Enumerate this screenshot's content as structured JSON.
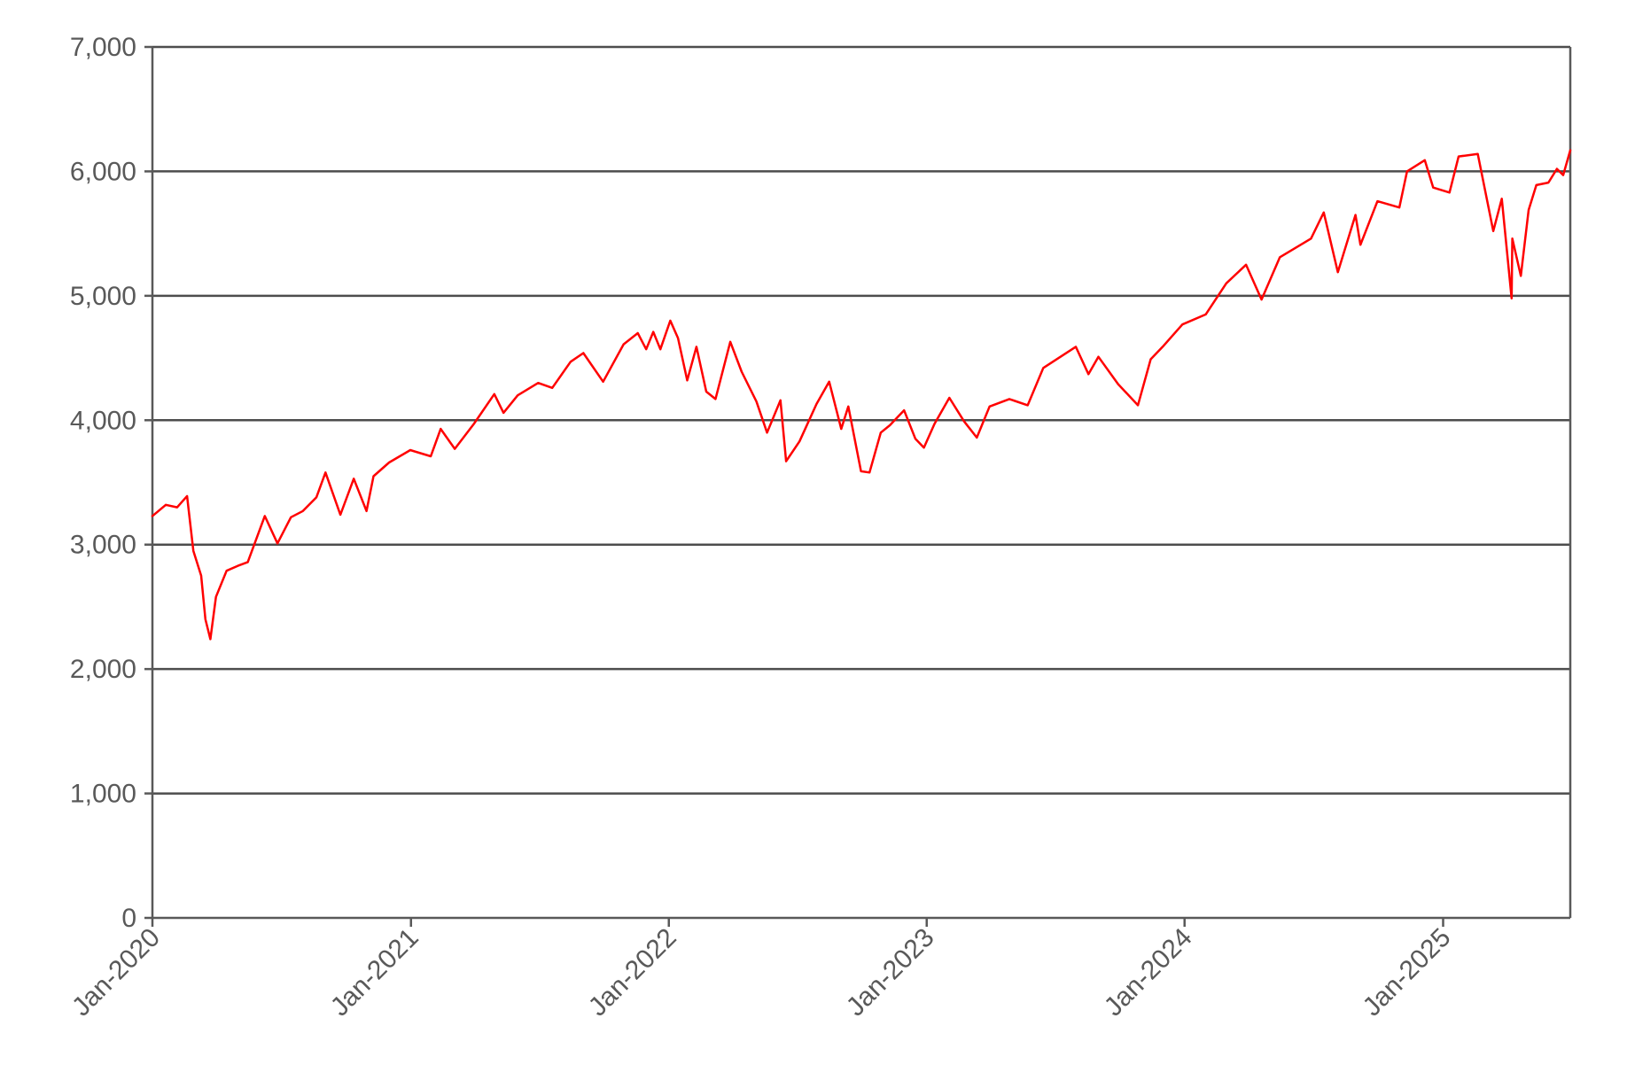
{
  "chart_data": {
    "type": "line",
    "title": "",
    "xlabel": "",
    "ylabel": "",
    "ylim": [
      0,
      7000
    ],
    "xlim": [
      "2020-01-01",
      "2025-06-30"
    ],
    "y_ticks": [
      0,
      1000,
      2000,
      3000,
      4000,
      5000,
      6000,
      7000
    ],
    "y_tick_labels": [
      "0",
      "1,000",
      "2,000",
      "3,000",
      "4,000",
      "5,000",
      "6,000",
      "7,000"
    ],
    "x_ticks": [
      "2020-01-01",
      "2021-01-01",
      "2022-01-01",
      "2023-01-01",
      "2024-01-01",
      "2025-01-01"
    ],
    "x_tick_labels": [
      "Jan-2020",
      "Jan-2021",
      "Jan-2022",
      "Jan-2023",
      "Jan-2024",
      "Jan-2025"
    ],
    "grid": true,
    "legend": "none",
    "series": [
      {
        "color": "#ff0000",
        "points": [
          [
            "2020-01-01",
            3230
          ],
          [
            "2020-01-20",
            3320
          ],
          [
            "2020-02-05",
            3300
          ],
          [
            "2020-02-19",
            3390
          ],
          [
            "2020-02-28",
            2950
          ],
          [
            "2020-03-10",
            2750
          ],
          [
            "2020-03-16",
            2400
          ],
          [
            "2020-03-23",
            2240
          ],
          [
            "2020-03-31",
            2580
          ],
          [
            "2020-04-15",
            2790
          ],
          [
            "2020-05-01",
            2830
          ],
          [
            "2020-05-15",
            2860
          ],
          [
            "2020-06-08",
            3230
          ],
          [
            "2020-06-26",
            3010
          ],
          [
            "2020-07-15",
            3220
          ],
          [
            "2020-08-01",
            3270
          ],
          [
            "2020-08-20",
            3380
          ],
          [
            "2020-09-02",
            3580
          ],
          [
            "2020-09-23",
            3240
          ],
          [
            "2020-10-12",
            3530
          ],
          [
            "2020-10-30",
            3270
          ],
          [
            "2020-11-09",
            3550
          ],
          [
            "2020-12-01",
            3660
          ],
          [
            "2020-12-31",
            3760
          ],
          [
            "2021-01-29",
            3710
          ],
          [
            "2021-02-12",
            3930
          ],
          [
            "2021-03-04",
            3770
          ],
          [
            "2021-03-31",
            3970
          ],
          [
            "2021-04-29",
            4210
          ],
          [
            "2021-05-12",
            4060
          ],
          [
            "2021-06-01",
            4200
          ],
          [
            "2021-06-30",
            4300
          ],
          [
            "2021-07-20",
            4260
          ],
          [
            "2021-08-15",
            4470
          ],
          [
            "2021-09-02",
            4540
          ],
          [
            "2021-09-30",
            4310
          ],
          [
            "2021-10-29",
            4610
          ],
          [
            "2021-11-18",
            4700
          ],
          [
            "2021-11-30",
            4570
          ],
          [
            "2021-12-10",
            4710
          ],
          [
            "2021-12-20",
            4570
          ],
          [
            "2022-01-03",
            4800
          ],
          [
            "2022-01-14",
            4660
          ],
          [
            "2022-01-27",
            4320
          ],
          [
            "2022-02-09",
            4590
          ],
          [
            "2022-02-23",
            4230
          ],
          [
            "2022-03-08",
            4170
          ],
          [
            "2022-03-29",
            4630
          ],
          [
            "2022-04-14",
            4390
          ],
          [
            "2022-05-05",
            4150
          ],
          [
            "2022-05-20",
            3900
          ],
          [
            "2022-06-08",
            4160
          ],
          [
            "2022-06-16",
            3670
          ],
          [
            "2022-07-05",
            3830
          ],
          [
            "2022-07-29",
            4130
          ],
          [
            "2022-08-16",
            4310
          ],
          [
            "2022-09-02",
            3930
          ],
          [
            "2022-09-12",
            4110
          ],
          [
            "2022-09-30",
            3590
          ],
          [
            "2022-10-12",
            3580
          ],
          [
            "2022-10-28",
            3900
          ],
          [
            "2022-11-10",
            3960
          ],
          [
            "2022-11-30",
            4080
          ],
          [
            "2022-12-16",
            3850
          ],
          [
            "2022-12-28",
            3780
          ],
          [
            "2023-01-12",
            3970
          ],
          [
            "2023-02-02",
            4180
          ],
          [
            "2023-02-23",
            3990
          ],
          [
            "2023-03-13",
            3860
          ],
          [
            "2023-03-31",
            4110
          ],
          [
            "2023-04-28",
            4170
          ],
          [
            "2023-05-24",
            4120
          ],
          [
            "2023-06-15",
            4420
          ],
          [
            "2023-07-31",
            4590
          ],
          [
            "2023-08-18",
            4370
          ],
          [
            "2023-09-01",
            4510
          ],
          [
            "2023-09-29",
            4290
          ],
          [
            "2023-10-27",
            4120
          ],
          [
            "2023-11-14",
            4490
          ],
          [
            "2023-12-01",
            4590
          ],
          [
            "2023-12-29",
            4770
          ],
          [
            "2024-01-31",
            4850
          ],
          [
            "2024-02-29",
            5100
          ],
          [
            "2024-03-28",
            5250
          ],
          [
            "2024-04-19",
            4970
          ],
          [
            "2024-05-15",
            5310
          ],
          [
            "2024-06-28",
            5460
          ],
          [
            "2024-07-16",
            5670
          ],
          [
            "2024-08-05",
            5190
          ],
          [
            "2024-08-30",
            5650
          ],
          [
            "2024-09-06",
            5410
          ],
          [
            "2024-09-30",
            5760
          ],
          [
            "2024-10-31",
            5710
          ],
          [
            "2024-11-11",
            6000
          ],
          [
            "2024-12-06",
            6090
          ],
          [
            "2024-12-18",
            5870
          ],
          [
            "2025-01-10",
            5830
          ],
          [
            "2025-01-23",
            6120
          ],
          [
            "2025-02-19",
            6140
          ],
          [
            "2025-03-13",
            5520
          ],
          [
            "2025-03-25",
            5780
          ],
          [
            "2025-04-08",
            4980
          ],
          [
            "2025-04-09",
            5460
          ],
          [
            "2025-04-21",
            5160
          ],
          [
            "2025-05-02",
            5690
          ],
          [
            "2025-05-13",
            5890
          ],
          [
            "2025-05-30",
            5910
          ],
          [
            "2025-06-11",
            6020
          ],
          [
            "2025-06-20",
            5970
          ],
          [
            "2025-06-30",
            6170
          ]
        ]
      }
    ]
  }
}
